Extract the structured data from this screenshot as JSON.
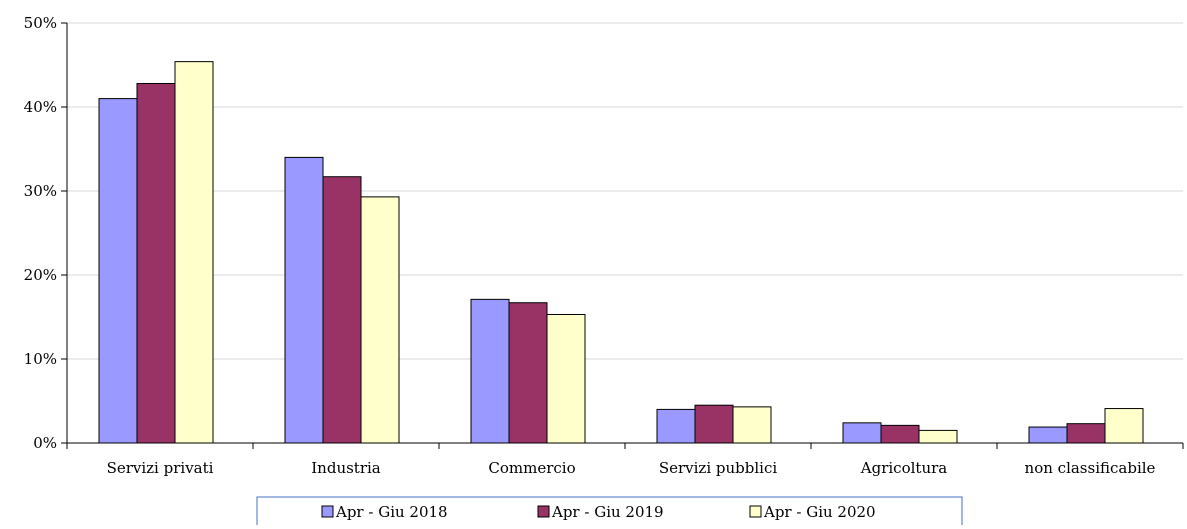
{
  "chart_data": {
    "type": "bar",
    "categories": [
      "Servizi privati",
      "Industria",
      "Commercio",
      "Servizi pubblici",
      "Agricoltura",
      "non classificabile"
    ],
    "series": [
      {
        "name": "Apr - Giu 2018",
        "color": "#9999ff",
        "values": [
          41.0,
          34.0,
          17.1,
          4.0,
          2.4,
          1.9
        ]
      },
      {
        "name": "Apr - Giu 2019",
        "color": "#993366",
        "values": [
          42.8,
          31.7,
          16.7,
          4.5,
          2.1,
          2.3
        ]
      },
      {
        "name": "Apr - Giu 2020",
        "color": "#ffffcc",
        "values": [
          45.4,
          29.3,
          15.3,
          4.3,
          1.5,
          4.1
        ]
      }
    ],
    "ylim": [
      0,
      50
    ],
    "yticks": [
      "0%",
      "10%",
      "20%",
      "30%",
      "40%",
      "50%"
    ],
    "grid": true,
    "legend_position": "bottom",
    "title": "",
    "xlabel": "",
    "ylabel": ""
  }
}
